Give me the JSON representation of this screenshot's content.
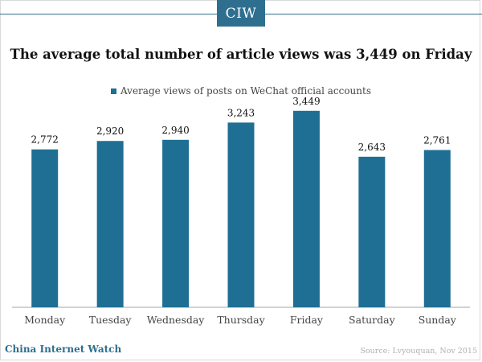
{
  "header": {
    "logo_text": "CIW"
  },
  "colors": {
    "brand": "#2e6f8f",
    "bar": "#1f6f94"
  },
  "chart_data": {
    "type": "bar",
    "title": "The average total number of article views was 3,449 on Friday",
    "legend_position": "top",
    "grid": false,
    "categories": [
      "Monday",
      "Tuesday",
      "Wednesday",
      "Thursday",
      "Friday",
      "Saturday",
      "Sunday"
    ],
    "series": [
      {
        "name": "Average views of posts on WeChat official accounts",
        "values": [
          2772,
          2920,
          2940,
          3243,
          3449,
          2643,
          2761
        ]
      }
    ],
    "data_labels": [
      "2,772",
      "2,920",
      "2,940",
      "3,243",
      "3,449",
      "2,643",
      "2,761"
    ],
    "ylim": [
      0,
      3700
    ]
  },
  "footer": {
    "brand": "China Internet Watch",
    "source": "Source: Lvyouquan, Nov 2015"
  }
}
